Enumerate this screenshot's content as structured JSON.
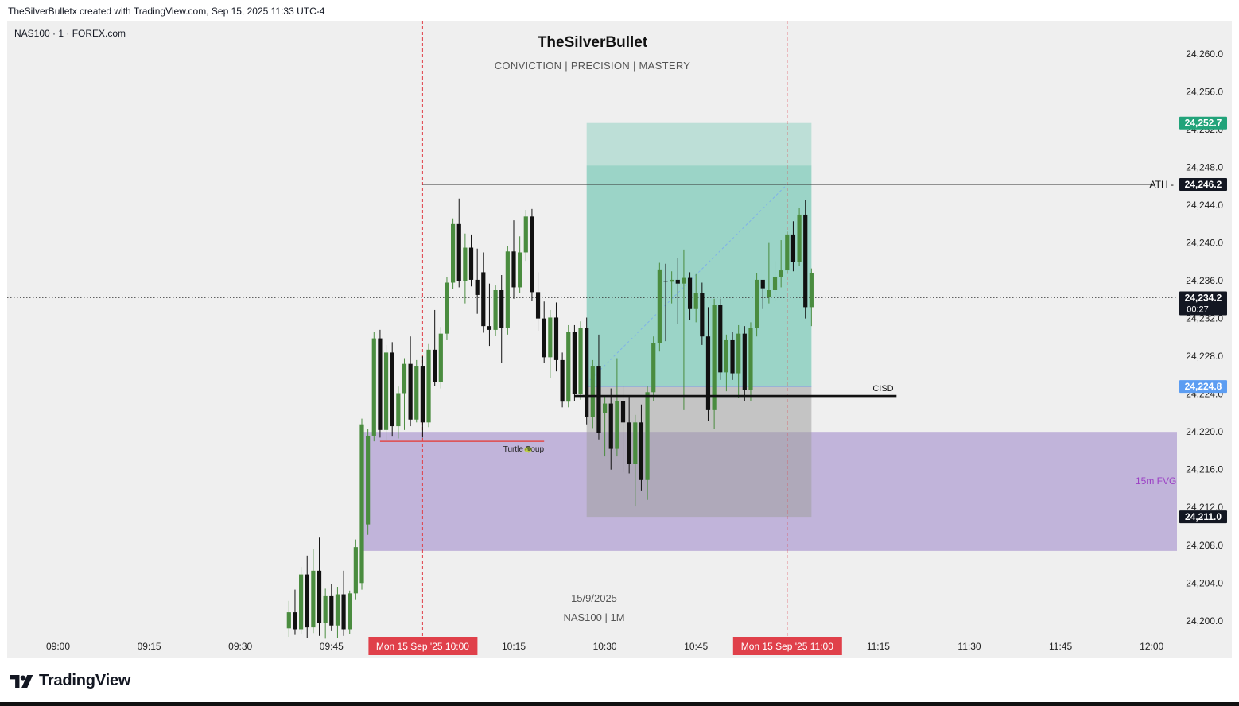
{
  "header": {
    "caption": "TheSilverBulletx created with TradingView.com, Sep 15, 2025 11:33 UTC-4"
  },
  "symbol_label": "NAS100 · 1 · FOREX.com",
  "watermark": {
    "title": "TheSilverBullet",
    "subtitle": "CONVICTION  |  PRECISION  |  MASTERY",
    "date": "15/9/2025",
    "symbol": "NAS100  |  1M"
  },
  "footer": {
    "brand": "TradingView"
  },
  "colors": {
    "up": "#4a8c3f",
    "down": "#111111",
    "fvg": "#b4a3d4",
    "target_zone": "#8ccfc0",
    "stop_zone": "#a0a0a0",
    "session_line": "#e0404a",
    "price_tag_green": "#22a37a",
    "price_tag_blue": "#5c9df2"
  },
  "chart_data": {
    "type": "candlestick",
    "instrument": "NAS100",
    "timeframe": "1",
    "x_ticks": [
      "09:00",
      "09:15",
      "09:30",
      "09:45",
      "10:15",
      "10:30",
      "10:45",
      "11:15",
      "11:30",
      "11:45",
      "12:00"
    ],
    "x_range": [
      "09:00",
      "12:00"
    ],
    "y_range": [
      24198,
      24262
    ],
    "y_ticks": [
      24260.0,
      24256.0,
      24252.0,
      24248.0,
      24244.0,
      24240.0,
      24236.0,
      24232.0,
      24228.0,
      24224.0,
      24220.0,
      24216.0,
      24212.0,
      24208.0,
      24204.0,
      24200.0
    ],
    "session_markers": [
      {
        "time": "10:00",
        "label": "Mon 15 Sep '25   10:00"
      },
      {
        "time": "11:00",
        "label": "Mon 15 Sep '25   11:00"
      }
    ],
    "price_labels": [
      {
        "value": 24252.7,
        "text": "24,252.7",
        "style": "green"
      },
      {
        "value": 24246.2,
        "text": "24,246.2",
        "style": "black",
        "prefix": "ATH"
      },
      {
        "value": 24234.2,
        "text": "24,234.2",
        "sub": "00:27",
        "style": "black"
      },
      {
        "value": 24224.8,
        "text": "24,224.8",
        "style": "blue"
      },
      {
        "value": 24211.0,
        "text": "24,211.0",
        "style": "black"
      }
    ],
    "annotations": {
      "ath": {
        "label": "ATH",
        "price": 24246.2,
        "start": "10:00"
      },
      "cisd": {
        "label": "CISD",
        "price": 24223.8,
        "start": "10:25",
        "end": "11:18"
      },
      "turtle_soup": {
        "label": "Turtle Soup",
        "price": 24219.0,
        "start": "09:53",
        "end": "10:20"
      },
      "fvg": {
        "label": "15m FVG",
        "top": 24220.0,
        "bottom": 24207.4,
        "start": "09:50",
        "end": "12:00"
      },
      "position": {
        "start": "10:27",
        "end": "11:04",
        "target": 24252.7,
        "take_profit": 24248.2,
        "entry": 24224.8,
        "stop": 24211.0
      }
    },
    "candles": [
      {
        "t": "09:38",
        "o": 24199.2,
        "h": 24202.1,
        "l": 24198.3,
        "c": 24200.9
      },
      {
        "t": "09:39",
        "o": 24200.9,
        "h": 24203.3,
        "l": 24198.5,
        "c": 24199.1
      },
      {
        "t": "09:40",
        "o": 24199.1,
        "h": 24205.7,
        "l": 24198.6,
        "c": 24204.9
      },
      {
        "t": "09:41",
        "o": 24204.9,
        "h": 24206.9,
        "l": 24198.2,
        "c": 24199.3
      },
      {
        "t": "09:42",
        "o": 24199.3,
        "h": 24207.6,
        "l": 24198.7,
        "c": 24205.3
      },
      {
        "t": "09:43",
        "o": 24205.3,
        "h": 24208.8,
        "l": 24198.4,
        "c": 24199.8
      },
      {
        "t": "09:44",
        "o": 24199.8,
        "h": 24203.4,
        "l": 24198.1,
        "c": 24202.6
      },
      {
        "t": "09:45",
        "o": 24202.6,
        "h": 24203.9,
        "l": 24198.9,
        "c": 24199.5
      },
      {
        "t": "09:46",
        "o": 24199.5,
        "h": 24203.6,
        "l": 24198.2,
        "c": 24202.8
      },
      {
        "t": "09:47",
        "o": 24202.8,
        "h": 24205.3,
        "l": 24198.4,
        "c": 24199.1
      },
      {
        "t": "09:48",
        "o": 24199.1,
        "h": 24203.2,
        "l": 24198.6,
        "c": 24202.9
      },
      {
        "t": "09:49",
        "o": 24202.9,
        "h": 24208.6,
        "l": 24202.2,
        "c": 24207.8
      },
      {
        "t": "09:50",
        "o": 24204.0,
        "h": 24221.4,
        "l": 24203.3,
        "c": 24220.8
      },
      {
        "t": "09:51",
        "o": 24210.2,
        "h": 24220.3,
        "l": 24209.1,
        "c": 24219.6
      },
      {
        "t": "09:52",
        "o": 24219.6,
        "h": 24230.6,
        "l": 24219.0,
        "c": 24229.9
      },
      {
        "t": "09:53",
        "o": 24229.9,
        "h": 24230.8,
        "l": 24219.4,
        "c": 24220.2
      },
      {
        "t": "09:54",
        "o": 24220.2,
        "h": 24229.2,
        "l": 24219.1,
        "c": 24228.4
      },
      {
        "t": "09:55",
        "o": 24228.4,
        "h": 24229.5,
        "l": 24219.5,
        "c": 24220.6
      },
      {
        "t": "09:56",
        "o": 24220.6,
        "h": 24224.8,
        "l": 24219.3,
        "c": 24224.1
      },
      {
        "t": "09:57",
        "o": 24224.1,
        "h": 24227.8,
        "l": 24220.2,
        "c": 24227.2
      },
      {
        "t": "09:58",
        "o": 24227.2,
        "h": 24230.1,
        "l": 24220.6,
        "c": 24221.3
      },
      {
        "t": "09:59",
        "o": 24221.3,
        "h": 24227.6,
        "l": 24221.0,
        "c": 24227.0
      },
      {
        "t": "10:00",
        "o": 24227.0,
        "h": 24228.0,
        "l": 24219.4,
        "c": 24221.0
      },
      {
        "t": "10:01",
        "o": 24221.0,
        "h": 24229.3,
        "l": 24220.5,
        "c": 24228.7
      },
      {
        "t": "10:02",
        "o": 24228.7,
        "h": 24232.9,
        "l": 24224.9,
        "c": 24225.3
      },
      {
        "t": "10:03",
        "o": 24225.3,
        "h": 24231.1,
        "l": 24224.6,
        "c": 24230.4
      },
      {
        "t": "10:04",
        "o": 24230.4,
        "h": 24236.4,
        "l": 24229.7,
        "c": 24235.8
      },
      {
        "t": "10:05",
        "o": 24235.8,
        "h": 24242.6,
        "l": 24235.1,
        "c": 24242.0
      },
      {
        "t": "10:06",
        "o": 24242.0,
        "h": 24244.7,
        "l": 24235.3,
        "c": 24236.0
      },
      {
        "t": "10:07",
        "o": 24236.0,
        "h": 24241.0,
        "l": 24233.6,
        "c": 24239.5
      },
      {
        "t": "10:08",
        "o": 24239.5,
        "h": 24240.9,
        "l": 24235.4,
        "c": 24236.1
      },
      {
        "t": "10:09",
        "o": 24236.1,
        "h": 24239.4,
        "l": 24232.5,
        "c": 24234.5
      },
      {
        "t": "10:10",
        "o": 24236.9,
        "h": 24239.0,
        "l": 24230.5,
        "c": 24231.2
      },
      {
        "t": "10:11",
        "o": 24231.2,
        "h": 24235.7,
        "l": 24229.1,
        "c": 24230.8
      },
      {
        "t": "10:12",
        "o": 24230.8,
        "h": 24235.5,
        "l": 24230.2,
        "c": 24235.0
      },
      {
        "t": "10:13",
        "o": 24235.0,
        "h": 24236.6,
        "l": 24227.3,
        "c": 24231.0
      },
      {
        "t": "10:14",
        "o": 24231.0,
        "h": 24239.7,
        "l": 24230.3,
        "c": 24239.1
      },
      {
        "t": "10:15",
        "o": 24239.1,
        "h": 24242.4,
        "l": 24234.1,
        "c": 24235.3
      },
      {
        "t": "10:16",
        "o": 24235.3,
        "h": 24240.7,
        "l": 24234.7,
        "c": 24239.0
      },
      {
        "t": "10:17",
        "o": 24239.0,
        "h": 24243.5,
        "l": 24238.1,
        "c": 24242.8
      },
      {
        "t": "10:18",
        "o": 24242.8,
        "h": 24243.6,
        "l": 24233.9,
        "c": 24234.8
      },
      {
        "t": "10:19",
        "o": 24234.8,
        "h": 24236.9,
        "l": 24230.7,
        "c": 24232.0
      },
      {
        "t": "10:20",
        "o": 24232.0,
        "h": 24233.8,
        "l": 24227.3,
        "c": 24227.9
      },
      {
        "t": "10:21",
        "o": 24227.9,
        "h": 24232.9,
        "l": 24225.7,
        "c": 24232.1
      },
      {
        "t": "10:22",
        "o": 24232.1,
        "h": 24233.7,
        "l": 24226.4,
        "c": 24227.6
      },
      {
        "t": "10:23",
        "o": 24227.6,
        "h": 24228.4,
        "l": 24222.6,
        "c": 24223.2
      },
      {
        "t": "10:24",
        "o": 24223.2,
        "h": 24231.3,
        "l": 24222.6,
        "c": 24230.6
      },
      {
        "t": "10:25",
        "o": 24230.6,
        "h": 24231.3,
        "l": 24223.3,
        "c": 24224.0
      },
      {
        "t": "10:26",
        "o": 24224.0,
        "h": 24231.7,
        "l": 24223.4,
        "c": 24231.0
      },
      {
        "t": "10:27",
        "o": 24231.0,
        "h": 24232.1,
        "l": 24220.8,
        "c": 24221.6
      },
      {
        "t": "10:28",
        "o": 24221.6,
        "h": 24227.6,
        "l": 24220.4,
        "c": 24227.0
      },
      {
        "t": "10:29",
        "o": 24227.0,
        "h": 24230.3,
        "l": 24219.2,
        "c": 24219.9
      },
      {
        "t": "10:30",
        "o": 24222.0,
        "h": 24223.8,
        "l": 24217.4,
        "c": 24223.0
      },
      {
        "t": "10:31",
        "o": 24223.0,
        "h": 24224.6,
        "l": 24216.0,
        "c": 24218.2
      },
      {
        "t": "10:32",
        "o": 24218.2,
        "h": 24227.8,
        "l": 24217.4,
        "c": 24223.3
      },
      {
        "t": "10:33",
        "o": 24223.3,
        "h": 24224.9,
        "l": 24215.7,
        "c": 24221.0
      },
      {
        "t": "10:34",
        "o": 24221.0,
        "h": 24223.7,
        "l": 24215.6,
        "c": 24216.6
      },
      {
        "t": "10:35",
        "o": 24216.6,
        "h": 24221.8,
        "l": 24212.1,
        "c": 24221.0
      },
      {
        "t": "10:36",
        "o": 24221.0,
        "h": 24222.9,
        "l": 24213.8,
        "c": 24214.9
      },
      {
        "t": "10:37",
        "o": 24214.9,
        "h": 24224.8,
        "l": 24212.8,
        "c": 24224.2
      },
      {
        "t": "10:38",
        "o": 24224.2,
        "h": 24230.1,
        "l": 24223.3,
        "c": 24229.4
      },
      {
        "t": "10:39",
        "o": 24229.4,
        "h": 24237.9,
        "l": 24228.5,
        "c": 24237.2
      },
      {
        "t": "10:40",
        "o": 24236.0,
        "h": 24237.8,
        "l": 24229.6,
        "c": 24235.9
      },
      {
        "t": "10:41",
        "o": 24235.9,
        "h": 24237.0,
        "l": 24233.6,
        "c": 24236.1
      },
      {
        "t": "10:42",
        "o": 24236.1,
        "h": 24238.4,
        "l": 24231.4,
        "c": 24235.7
      },
      {
        "t": "10:43",
        "o": 24235.7,
        "h": 24239.3,
        "l": 24222.3,
        "c": 24236.3
      },
      {
        "t": "10:44",
        "o": 24236.3,
        "h": 24236.9,
        "l": 24231.8,
        "c": 24233.0
      },
      {
        "t": "10:45",
        "o": 24233.0,
        "h": 24236.7,
        "l": 24231.6,
        "c": 24234.7
      },
      {
        "t": "10:46",
        "o": 24234.7,
        "h": 24235.8,
        "l": 24229.2,
        "c": 24230.1
      },
      {
        "t": "10:47",
        "o": 24230.1,
        "h": 24233.2,
        "l": 24221.2,
        "c": 24222.3
      },
      {
        "t": "10:48",
        "o": 24222.3,
        "h": 24234.1,
        "l": 24220.3,
        "c": 24233.4
      },
      {
        "t": "10:49",
        "o": 24233.4,
        "h": 24234.1,
        "l": 24225.5,
        "c": 24226.3
      },
      {
        "t": "10:50",
        "o": 24226.3,
        "h": 24230.3,
        "l": 24224.3,
        "c": 24229.7
      },
      {
        "t": "10:51",
        "o": 24229.7,
        "h": 24230.6,
        "l": 24225.5,
        "c": 24226.2
      },
      {
        "t": "10:52",
        "o": 24226.2,
        "h": 24231.3,
        "l": 24223.6,
        "c": 24230.4
      },
      {
        "t": "10:53",
        "o": 24230.4,
        "h": 24231.2,
        "l": 24223.3,
        "c": 24224.4
      },
      {
        "t": "10:54",
        "o": 24224.4,
        "h": 24231.6,
        "l": 24223.3,
        "c": 24231.0
      },
      {
        "t": "10:55",
        "o": 24231.0,
        "h": 24236.8,
        "l": 24230.1,
        "c": 24236.1
      },
      {
        "t": "10:56",
        "o": 24236.1,
        "h": 24235.8,
        "l": 24233.0,
        "c": 24235.2
      },
      {
        "t": "10:57",
        "o": 24234.3,
        "h": 24240.0,
        "l": 24233.6,
        "c": 24235.0
      },
      {
        "t": "10:58",
        "o": 24235.0,
        "h": 24238.1,
        "l": 24233.9,
        "c": 24236.4
      },
      {
        "t": "10:59",
        "o": 24236.4,
        "h": 24240.3,
        "l": 24235.3,
        "c": 24237.1
      },
      {
        "t": "11:00",
        "o": 24237.1,
        "h": 24241.3,
        "l": 24236.8,
        "c": 24240.9
      },
      {
        "t": "11:01",
        "o": 24240.9,
        "h": 24242.3,
        "l": 24237.0,
        "c": 24238.0
      },
      {
        "t": "11:02",
        "o": 24238.0,
        "h": 24243.7,
        "l": 24237.6,
        "c": 24243.0
      },
      {
        "t": "11:03",
        "o": 24243.0,
        "h": 24244.6,
        "l": 24232.0,
        "c": 24233.2
      },
      {
        "t": "11:04",
        "o": 24233.2,
        "h": 24237.3,
        "l": 24231.2,
        "c": 24236.8
      }
    ]
  }
}
